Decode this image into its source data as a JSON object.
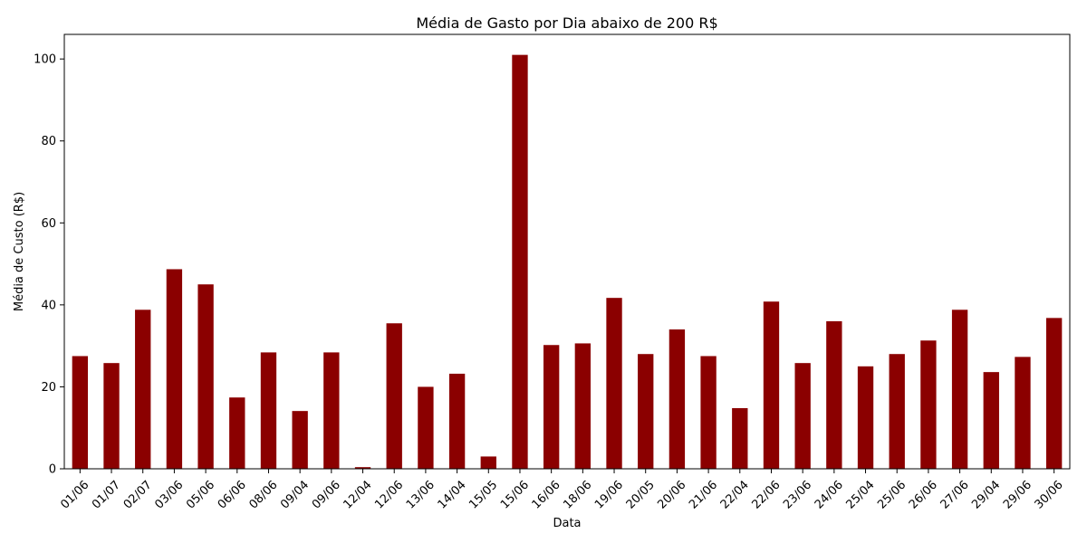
{
  "chart_data": {
    "type": "bar",
    "title": "Média de Gasto por Dia abaixo de 200 R$",
    "xlabel": "Data",
    "ylabel": "Média de Custo (R$)",
    "ylim": [
      0,
      106
    ],
    "yticks": [
      0,
      20,
      40,
      60,
      80,
      100
    ],
    "grid": false,
    "bar_color": "#8b0000",
    "categories": [
      "01/06",
      "01/07",
      "02/07",
      "03/06",
      "05/06",
      "06/06",
      "08/06",
      "09/04",
      "09/06",
      "12/04",
      "12/06",
      "13/06",
      "14/04",
      "15/05",
      "15/06",
      "16/06",
      "18/06",
      "19/06",
      "20/05",
      "20/06",
      "21/06",
      "22/04",
      "22/06",
      "23/06",
      "24/06",
      "25/04",
      "25/06",
      "26/06",
      "27/06",
      "29/04",
      "29/06",
      "30/06"
    ],
    "values": [
      27.5,
      25.8,
      38.8,
      48.7,
      45.0,
      17.4,
      28.4,
      14.1,
      28.4,
      0.4,
      35.5,
      20.0,
      23.2,
      3.0,
      101.0,
      30.2,
      30.6,
      41.7,
      28.0,
      34.0,
      27.5,
      14.8,
      40.8,
      25.8,
      36.0,
      25.0,
      28.0,
      31.3,
      38.8,
      23.6,
      27.3,
      36.8
    ]
  }
}
